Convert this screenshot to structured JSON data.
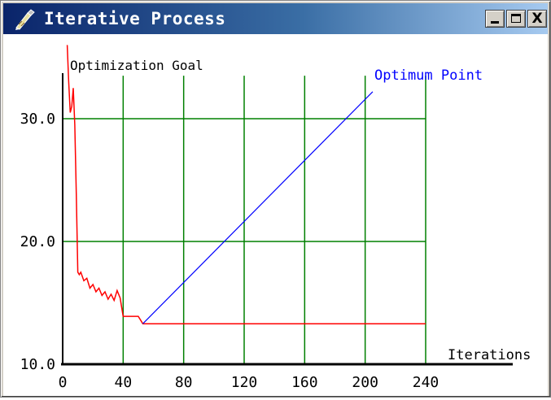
{
  "window": {
    "title": "Iterative Process",
    "minimize_label": "_",
    "maximize_label": "□",
    "close_label": "X",
    "app_icon": "pen-icon"
  },
  "chart_data": {
    "type": "line",
    "ylabel": "Optimization Goal",
    "xlabel": "Iterations",
    "xlim": [
      0,
      240
    ],
    "ylim": [
      10,
      35
    ],
    "x_ticks": [
      "0",
      "40",
      "80",
      "120",
      "160",
      "200",
      "240"
    ],
    "y_ticks": [
      "10.0",
      "20.0",
      "30.0"
    ],
    "grid": true,
    "grid_x": [
      40,
      80,
      120,
      160,
      200,
      240
    ],
    "grid_y": [
      20,
      30
    ],
    "annotation": {
      "text": "Optimum Point",
      "from": [
        53,
        13.3
      ],
      "to": [
        205,
        32.2
      ],
      "color": "#0000ff"
    },
    "series": [
      {
        "color": "#ff0000",
        "x": [
          3,
          4,
          5,
          6,
          7,
          8,
          9,
          10,
          11,
          12,
          14,
          16,
          18,
          20,
          22,
          24,
          26,
          28,
          30,
          32,
          34,
          36,
          38,
          40,
          45,
          50,
          53,
          55,
          60,
          80,
          120,
          160,
          200,
          240
        ],
        "y": [
          36.0,
          33.0,
          30.5,
          31.0,
          32.5,
          29.5,
          24.0,
          17.5,
          17.3,
          17.5,
          16.8,
          17.0,
          16.2,
          16.5,
          15.9,
          16.2,
          15.6,
          15.9,
          15.3,
          15.7,
          15.2,
          16.0,
          15.4,
          13.9,
          13.9,
          13.9,
          13.3,
          13.3,
          13.3,
          13.3,
          13.3,
          13.3,
          13.3,
          13.3
        ]
      }
    ]
  }
}
